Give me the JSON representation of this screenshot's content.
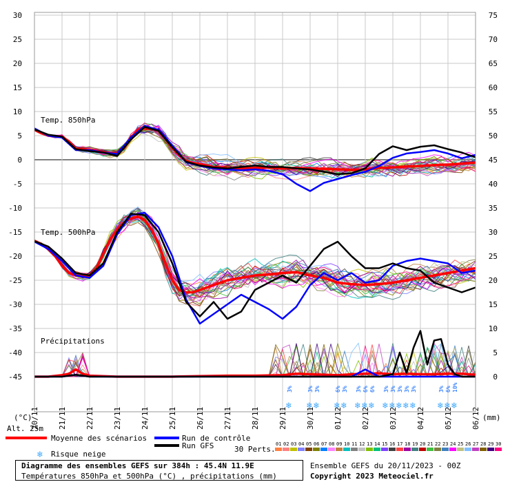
{
  "chart_data": {
    "type": "line",
    "title": "Diagramme des ensembles GEFS sur 384h : 45.4N 11.9E",
    "subtitle": "Températures 850hPa et 500hPa (°C) , précipitations (mm)",
    "run_info": "Ensemble GEFS du 20/11/2023 - 00Z",
    "copyright": "Copyright 2023 Meteociel.fr",
    "altitude": "Alt. 25m",
    "left_unit": "(°C)",
    "right_unit": "(mm)",
    "y_left_ticks": [
      30,
      25,
      20,
      15,
      10,
      5,
      0,
      -5,
      -10,
      -15,
      -20,
      -25,
      -30,
      -35,
      -40,
      -45
    ],
    "y_right_ticks": [
      75,
      70,
      65,
      60,
      55,
      50,
      45,
      40,
      35,
      30,
      25,
      20,
      15,
      10,
      5,
      0
    ],
    "x_labels": [
      "20/11",
      "21/11",
      "22/11",
      "23/11",
      "24/11",
      "25/11",
      "26/11",
      "27/11",
      "28/11",
      "29/11",
      "30/11",
      "01/12",
      "02/12",
      "03/12",
      "04/12",
      "05/12",
      "06/12"
    ],
    "panels": {
      "t850": "Temp. 850hPa",
      "t500": "Temp. 500hPa",
      "precip": "Précipitations"
    },
    "legend": {
      "mean": {
        "label": "Moyenne des scénarios",
        "color": "#ff0000"
      },
      "control": {
        "label": "Run de contrôle",
        "color": "#0000ff"
      },
      "gfs": {
        "label": "Run GFS",
        "color": "#000000"
      },
      "snow": {
        "label": "Risque neige"
      },
      "perts_label": "30 Perts."
    },
    "perturbation_labels": [
      "01",
      "02",
      "03",
      "04",
      "05",
      "06",
      "07",
      "08",
      "09",
      "10",
      "11",
      "12",
      "13",
      "14",
      "15",
      "16",
      "17",
      "18",
      "19",
      "20",
      "21",
      "22",
      "23",
      "24",
      "25",
      "26",
      "27",
      "28",
      "29",
      "30"
    ],
    "perturbation_colors": [
      "#ff8040",
      "#ff8080",
      "#c0c000",
      "#8080ff",
      "#804000",
      "#808000",
      "#0080ff",
      "#ff80ff",
      "#c08040",
      "#00c0c0",
      "#808080",
      "#c0c0c0",
      "#80c000",
      "#00c080",
      "#8040ff",
      "#404040",
      "#ff4040",
      "#a000a0",
      "#408080",
      "#c00000",
      "#40c040",
      "#808040",
      "#4080c0",
      "#ff00ff",
      "#c0c080",
      "#80c0ff",
      "#c040c0",
      "#806000",
      "#400080",
      "#ff0080"
    ],
    "series": [
      {
        "name": "Temp. 850hPa - Moyenne des scénarios",
        "color": "#ff0000",
        "x": [
          0,
          0.25,
          0.5,
          0.75,
          1,
          1.25,
          1.5,
          1.75,
          2,
          2.25,
          2.5,
          2.75,
          3,
          3.25,
          3.5,
          3.75,
          4,
          4.25,
          4.5,
          4.75,
          5,
          5.25,
          5.5,
          5.75,
          6,
          6.25,
          6.5,
          6.75,
          7,
          7.5,
          8,
          8.5,
          9,
          9.5,
          10,
          10.5,
          11,
          11.5,
          12,
          12.5,
          13,
          13.5,
          14,
          14.5,
          15,
          15.5,
          16
        ],
        "y": [
          6.2,
          5.5,
          5.0,
          4.9,
          4.8,
          3.8,
          2.3,
          2.2,
          2.1,
          1.8,
          1.6,
          1.4,
          1.3,
          2.4,
          4.5,
          6.2,
          6.5,
          6.4,
          6.0,
          4.5,
          2.4,
          1.0,
          -0.2,
          -0.7,
          -0.9,
          -1.2,
          -1.5,
          -1.6,
          -1.7,
          -1.8,
          -1.7,
          -1.6,
          -1.8,
          -1.7,
          -1.8,
          -1.9,
          -2.0,
          -2.1,
          -2.0,
          -1.7,
          -1.6,
          -1.4,
          -1.3,
          -1.1,
          -1.0,
          -0.8,
          -0.6
        ]
      },
      {
        "name": "Temp. 850hPa - Run de contrôle",
        "color": "#0000ff",
        "x": [
          0,
          0.5,
          1,
          1.5,
          2,
          2.5,
          3,
          3.5,
          4,
          4.5,
          5,
          5.5,
          6,
          6.5,
          7,
          7.5,
          8,
          8.5,
          9,
          9.5,
          10,
          10.5,
          11,
          11.5,
          12,
          12.5,
          13,
          13.5,
          14,
          14.5,
          15,
          15.5,
          16
        ],
        "y": [
          6.5,
          5.0,
          4.6,
          2.0,
          2.0,
          1.5,
          1.2,
          4.6,
          7.0,
          6.2,
          3.0,
          -0.5,
          -1.3,
          -1.8,
          -2.0,
          -2.2,
          -2.0,
          -2.3,
          -3.0,
          -5.0,
          -6.5,
          -4.8,
          -4.0,
          -3.2,
          -2.5,
          -1.3,
          0.4,
          1.3,
          1.6,
          2.0,
          1.3,
          0.3,
          1.0
        ]
      },
      {
        "name": "Temp. 850hPa - Run GFS",
        "color": "#000000",
        "x": [
          0,
          0.5,
          1,
          1.5,
          2,
          2.5,
          3,
          3.5,
          4,
          4.5,
          5,
          5.5,
          6,
          6.5,
          7,
          7.5,
          8,
          8.5,
          9,
          9.5,
          10,
          10.5,
          11,
          11.5,
          12,
          12.5,
          13,
          13.5,
          14,
          14.5,
          15,
          15.5,
          16
        ],
        "y": [
          6.3,
          5.2,
          4.8,
          2.2,
          1.8,
          1.5,
          0.8,
          4.2,
          6.8,
          6.0,
          2.6,
          -0.4,
          -1.2,
          -1.6,
          -1.8,
          -1.5,
          -1.2,
          -1.5,
          -1.5,
          -1.8,
          -2.0,
          -2.5,
          -3.0,
          -2.8,
          -1.8,
          1.2,
          2.8,
          2.0,
          2.7,
          3.0,
          2.2,
          1.5,
          0.5
        ]
      },
      {
        "name": "Temp. 500hPa - Moyenne des scénarios",
        "color": "#ff0000",
        "x": [
          0,
          0.25,
          0.5,
          0.75,
          1,
          1.25,
          1.5,
          1.75,
          2,
          2.25,
          2.5,
          2.75,
          3,
          3.25,
          3.5,
          3.75,
          4,
          4.25,
          4.5,
          4.75,
          5,
          5.25,
          5.5,
          5.75,
          6,
          6.25,
          6.5,
          6.75,
          7,
          7.5,
          8,
          8.5,
          9,
          9.5,
          10,
          10.5,
          11,
          11.5,
          12,
          12.5,
          13,
          13.5,
          14,
          14.5,
          15,
          15.5,
          16
        ],
        "y": [
          -16.8,
          -17.5,
          -18.5,
          -20.0,
          -22.0,
          -23.5,
          -24.0,
          -24.2,
          -24.0,
          -22.5,
          -19.5,
          -16.5,
          -14.5,
          -13.0,
          -12.2,
          -11.8,
          -12.5,
          -14.5,
          -17.5,
          -21.5,
          -25.0,
          -27.0,
          -27.5,
          -27.5,
          -27.0,
          -26.5,
          -26.0,
          -25.5,
          -25.0,
          -24.5,
          -24.0,
          -23.8,
          -23.5,
          -23.3,
          -24.0,
          -24.5,
          -25.5,
          -25.8,
          -26.0,
          -25.8,
          -25.5,
          -25.0,
          -24.5,
          -24.0,
          -23.5,
          -23.0,
          -22.5
        ]
      },
      {
        "name": "Temp. 500hPa - Run de contrôle",
        "color": "#0000ff",
        "x": [
          0,
          0.5,
          1,
          1.5,
          2,
          2.5,
          3,
          3.5,
          4,
          4.5,
          5,
          5.5,
          6,
          6.5,
          7,
          7.5,
          8,
          8.5,
          9,
          9.5,
          10,
          10.5,
          11,
          11.5,
          12,
          12.5,
          13,
          13.5,
          14,
          14.5,
          15,
          15.5,
          16
        ],
        "y": [
          -17.0,
          -18.5,
          -21.0,
          -24.0,
          -24.5,
          -22.0,
          -15.5,
          -11.5,
          -11.0,
          -14.0,
          -20.0,
          -29.0,
          -34.0,
          -32.0,
          -30.0,
          -28.0,
          -29.5,
          -31.0,
          -33.0,
          -30.5,
          -26.0,
          -23.5,
          -25.0,
          -23.5,
          -25.5,
          -25.0,
          -22.0,
          -21.0,
          -20.5,
          -21.0,
          -21.5,
          -23.5,
          -23.0
        ]
      },
      {
        "name": "Temp. 500hPa - Run GFS",
        "color": "#000000",
        "x": [
          0,
          0.5,
          1,
          1.5,
          2,
          2.5,
          3,
          3.5,
          4,
          4.5,
          5,
          5.5,
          6,
          6.5,
          7,
          7.5,
          8,
          8.5,
          9,
          9.5,
          10,
          10.5,
          11,
          11.5,
          12,
          12.5,
          13,
          13.5,
          14,
          14.5,
          15,
          15.5,
          16
        ],
        "y": [
          -16.9,
          -18.0,
          -20.5,
          -23.5,
          -24.0,
          -21.5,
          -15.0,
          -11.2,
          -11.5,
          -15.0,
          -21.5,
          -29.5,
          -32.5,
          -29.5,
          -33.0,
          -31.5,
          -27.0,
          -25.5,
          -24.0,
          -25.5,
          -22.0,
          -18.5,
          -17.0,
          -20.0,
          -22.5,
          -22.5,
          -21.5,
          -22.5,
          -23.0,
          -25.5,
          -26.5,
          -27.5,
          -26.5
        ]
      },
      {
        "name": "Précipitations - Moyenne des scénarios (mm)",
        "color": "#ff0000",
        "x": [
          0,
          0.5,
          1,
          1.25,
          1.5,
          1.75,
          2,
          3,
          4,
          5,
          6,
          7,
          8,
          9,
          9.5,
          10,
          10.5,
          11,
          11.5,
          12,
          12.5,
          13,
          13.5,
          14,
          14.5,
          15,
          15.5,
          16
        ],
        "y": [
          0,
          0,
          0.3,
          0.6,
          1.5,
          0.6,
          0.2,
          0,
          0,
          0,
          0.1,
          0.2,
          0.2,
          0.3,
          0.6,
          0.5,
          0.4,
          0.3,
          0.5,
          0.6,
          0.7,
          0.5,
          0.6,
          0.5,
          0.5,
          0.6,
          0.6,
          0.4
        ]
      },
      {
        "name": "Précipitations - Run de contrôle (mm)",
        "color": "#0000ff",
        "x": [
          0,
          0.5,
          1,
          1.5,
          2,
          3,
          4,
          5,
          6,
          7,
          8,
          9,
          10,
          10.5,
          11,
          11.5,
          12,
          12.5,
          13,
          13.5,
          14,
          14.5,
          15,
          15.5,
          16
        ],
        "y": [
          0,
          0,
          0,
          0.4,
          0,
          0,
          0,
          0,
          0,
          0,
          0,
          0,
          0,
          0,
          0,
          0,
          1.5,
          0,
          0,
          0,
          0,
          0,
          0,
          0,
          0
        ]
      },
      {
        "name": "Précipitations - Run GFS (mm)",
        "color": "#000000",
        "x": [
          0,
          0.5,
          1,
          1.5,
          2,
          3,
          4,
          5,
          6,
          7,
          8,
          9,
          10,
          11,
          11.5,
          12,
          12.5,
          13,
          13.25,
          13.5,
          13.75,
          14,
          14.25,
          14.5,
          14.75,
          15,
          15.25,
          15.5,
          16
        ],
        "y": [
          0,
          0,
          0,
          0.4,
          0,
          0,
          0,
          0,
          0,
          0,
          0,
          0,
          0,
          0,
          0,
          0,
          0,
          0.5,
          5.0,
          0.8,
          6.0,
          9.5,
          2.5,
          7.5,
          7.8,
          2.5,
          0.5,
          0,
          0
        ]
      }
    ],
    "snow_risk": [
      {
        "day": 9.25,
        "labels": [
          "3%"
        ]
      },
      {
        "day": 10.0,
        "labels": [
          "3%",
          "3%"
        ]
      },
      {
        "day": 11.0,
        "labels": [
          "6%",
          "3%"
        ]
      },
      {
        "day": 11.75,
        "labels": [
          "3%",
          "6%",
          "6%"
        ]
      },
      {
        "day": 12.75,
        "labels": [
          "3%",
          "3%",
          "3%",
          "3%",
          "3%"
        ]
      },
      {
        "day": 14.75,
        "labels": [
          "3%",
          "6%",
          "10%"
        ]
      }
    ]
  }
}
